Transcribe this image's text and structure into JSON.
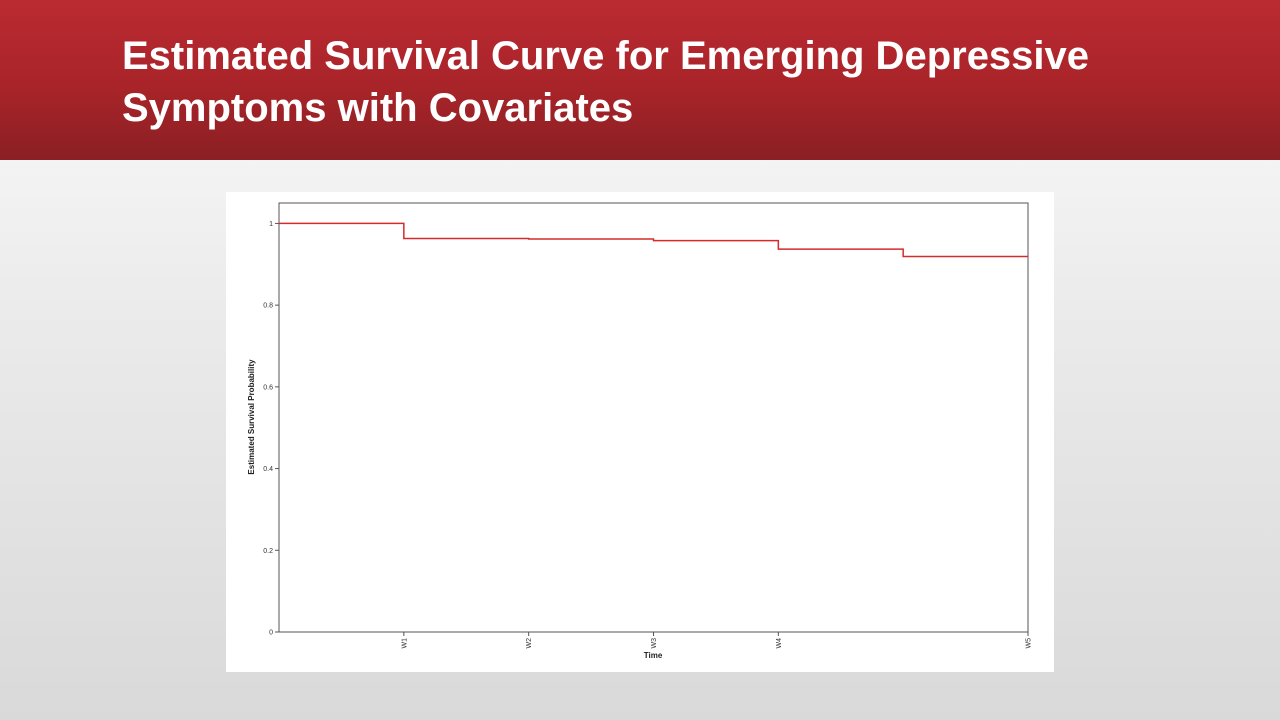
{
  "slide": {
    "title": "Estimated Survival Curve for Emerging Depressive Symptoms with Covariates"
  },
  "colors": {
    "title_bar": "#b0262c",
    "title_text": "#ffffff",
    "curve": "#d62a2a",
    "frame": "#555555"
  },
  "chart_data": {
    "type": "line",
    "step": true,
    "xlabel": "Time",
    "ylabel": "Estimated Survival Probability",
    "xlim": [
      0,
      6
    ],
    "ylim": [
      0,
      1.05
    ],
    "x_ticks": [
      {
        "value": 1,
        "label": "W1"
      },
      {
        "value": 2,
        "label": "W2"
      },
      {
        "value": 3,
        "label": "W3"
      },
      {
        "value": 4,
        "label": "W4"
      },
      {
        "value": 6,
        "label": "W5"
      }
    ],
    "y_ticks": [
      {
        "value": 0,
        "label": "0"
      },
      {
        "value": 0.2,
        "label": "0.2"
      },
      {
        "value": 0.4,
        "label": "0.4"
      },
      {
        "value": 0.6,
        "label": "0.6"
      },
      {
        "value": 0.8,
        "label": "0.8"
      },
      {
        "value": 1,
        "label": "1"
      }
    ],
    "series": [
      {
        "x": [
          0,
          1,
          2,
          3,
          4,
          5,
          6
        ],
        "values": [
          1.0,
          0.963,
          0.962,
          0.958,
          0.937,
          0.919,
          0.919
        ]
      }
    ]
  }
}
